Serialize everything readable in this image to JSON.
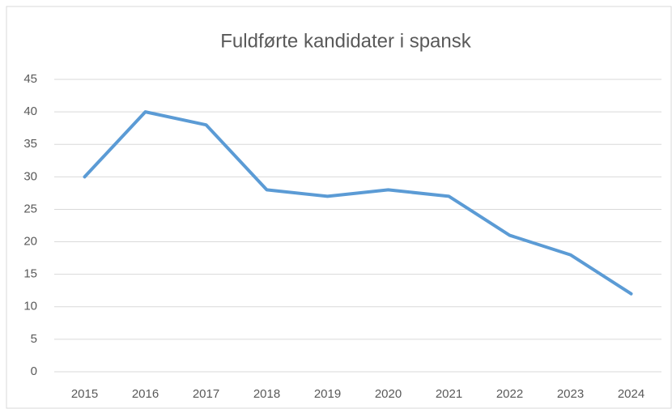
{
  "chart_data": {
    "type": "line",
    "title": "Fuldførte kandidater i spansk",
    "categories": [
      "2015",
      "2016",
      "2017",
      "2018",
      "2019",
      "2020",
      "2021",
      "2022",
      "2023",
      "2024"
    ],
    "series": [
      {
        "name": "Fuldførte kandidater",
        "color": "#5b9bd5",
        "values": [
          30,
          40,
          38,
          28,
          27,
          28,
          27,
          21,
          18,
          12
        ]
      }
    ],
    "ylim": [
      0,
      45
    ],
    "yticks": [
      0,
      5,
      10,
      15,
      20,
      25,
      30,
      35,
      40,
      45
    ],
    "grid": true
  }
}
